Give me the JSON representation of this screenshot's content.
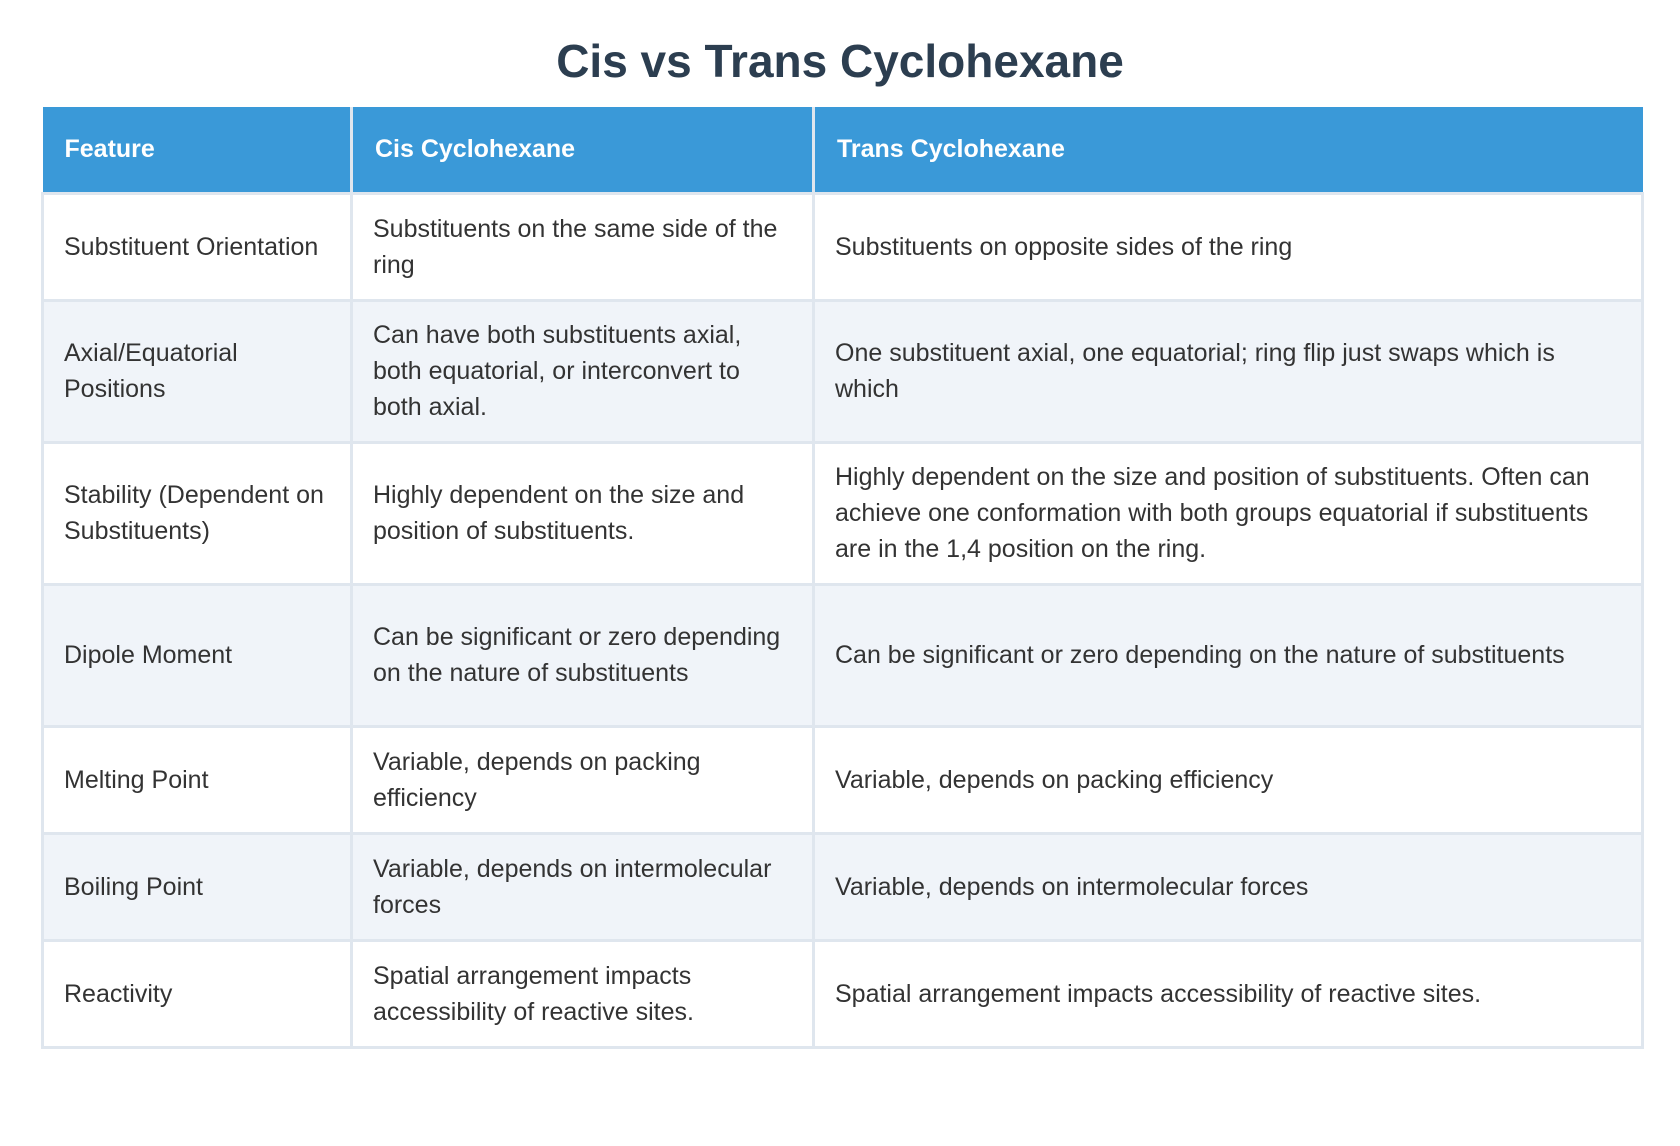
{
  "title": "Cis vs Trans Cyclohexane",
  "table": {
    "headers": [
      "Feature",
      "Cis Cyclohexane",
      "Trans Cyclohexane"
    ],
    "rows": [
      {
        "feature": "Substituent Orientation",
        "cis": "Substituents on the same side of the ring",
        "trans": "Substituents on opposite sides of the ring"
      },
      {
        "feature": "Axial/Equatorial Positions",
        "cis": "Can have both substituents axial, both equatorial, or interconvert to both axial.",
        "trans": "One substituent axial, one equatorial; ring flip just swaps which is which"
      },
      {
        "feature": "Stability (Dependent on Substituents)",
        "cis": "Highly dependent on the size and position of substituents.",
        "trans": "Highly dependent on the size and position of substituents. Often can achieve one conformation with both groups equatorial if substituents are in the 1,4 position on the ring."
      },
      {
        "feature": "Dipole Moment",
        "cis": "Can be significant or zero depending on the nature of substituents",
        "trans": "Can be significant or zero depending on the nature of substituents"
      },
      {
        "feature": "Melting Point",
        "cis": "Variable, depends on packing efficiency",
        "trans": "Variable, depends on packing efficiency"
      },
      {
        "feature": "Boiling Point",
        "cis": "Variable, depends on intermolecular forces",
        "trans": "Variable, depends on intermolecular forces"
      },
      {
        "feature": "Reactivity",
        "cis": "Spatial arrangement impacts accessibility of reactive sites.",
        "trans": "Spatial arrangement impacts accessibility of reactive sites."
      }
    ]
  },
  "colors": {
    "header_bg": "#3a99d8",
    "title_text": "#2c3e50",
    "row_alt_bg": "#f0f4f9",
    "border": "#dfe6ee"
  }
}
